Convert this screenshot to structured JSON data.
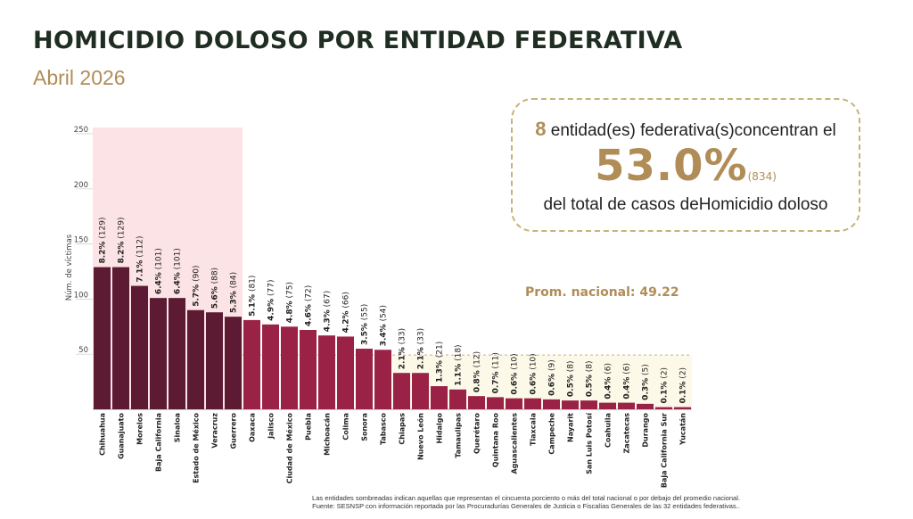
{
  "header": {
    "title": "HOMICIDIO DOLOSO POR ENTIDAD FEDERATIVA",
    "subtitle": "Abril 2026"
  },
  "callout": {
    "count": "8",
    "line1_text": " entidad(es) federativa(s)concentran el",
    "percentage": "53.0%",
    "cases": "(834)",
    "line3_text": "del total de casos deHomicidio doloso"
  },
  "average": {
    "label": "Prom. nacional: 49.22",
    "value": 49.22
  },
  "footnote": {
    "line1": "Las entidades sombreadas indican aquellas que representan el cincuenta porciento o más del total nacional o por debajo del promedio nacional.",
    "line2": "Fuente: SESNSP con información reportada por las Procuradurías Generales de Justicia o Fiscalías Generales de las 32 entidades federativas.."
  },
  "colors": {
    "top_bar": "#5c1a33",
    "regular_bar": "#9b2247",
    "top_shade": "#fce3e5",
    "below_avg_shade": "#fdf9e8",
    "accent": "#b08d57"
  },
  "chart_data": {
    "type": "bar",
    "ylabel": "Núm. de víctimas",
    "ylim": [
      0,
      250
    ],
    "yticks": [
      50,
      100,
      150,
      200,
      250
    ],
    "top_group_count": 8,
    "categories": [
      "Chihuahua",
      "Guanajuato",
      "Morelos",
      "Baja California",
      "Sinaloa",
      "Estado de México",
      "Veracruz",
      "Guerrero",
      "Oaxaca",
      "Jalisco",
      "Ciudad de México",
      "Puebla",
      "Michoacán",
      "Colima",
      "Sonora",
      "Tabasco",
      "Chiapas",
      "Nuevo León",
      "Hidalgo",
      "Tamaulipas",
      "Querétaro",
      "Quintana Roo",
      "Aguascalientes",
      "Tlaxcala",
      "Campeche",
      "Nayarit",
      "San Luis Potosí",
      "Coahuila",
      "Zacatecas",
      "Durango",
      "Baja California Sur",
      "Yucatán"
    ],
    "values": [
      129,
      129,
      112,
      101,
      101,
      90,
      88,
      84,
      81,
      77,
      75,
      72,
      67,
      66,
      55,
      54,
      33,
      33,
      21,
      18,
      12,
      11,
      10,
      10,
      9,
      8,
      8,
      6,
      6,
      5,
      2,
      2
    ],
    "percent_labels": [
      "8.2%",
      "8.2%",
      "7.1%",
      "6.4%",
      "6.4%",
      "5.7%",
      "5.6%",
      "5.3%",
      "5.1%",
      "4.9%",
      "4.8%",
      "4.6%",
      "4.3%",
      "4.2%",
      "3.5%",
      "3.4%",
      "2.1%",
      "2.1%",
      "1.3%",
      "1.1%",
      "0.8%",
      "0.7%",
      "0.6%",
      "0.6%",
      "0.6%",
      "0.5%",
      "0.5%",
      "0.4%",
      "0.4%",
      "0.3%",
      "0.1%",
      "0.1%"
    ],
    "count_labels": [
      "(129)",
      "(129)",
      "(112)",
      "(101)",
      "(101)",
      "(90)",
      "(88)",
      "(84)",
      "(81)",
      "(77)",
      "(75)",
      "(72)",
      "(67)",
      "(66)",
      "(55)",
      "(54)",
      "(33)",
      "(33)",
      "(21)",
      "(18)",
      "(12)",
      "(11)",
      "(10)",
      "(10)",
      "(9)",
      "(8)",
      "(8)",
      "(6)",
      "(6)",
      "(5)",
      "(2)",
      "(2)"
    ]
  }
}
